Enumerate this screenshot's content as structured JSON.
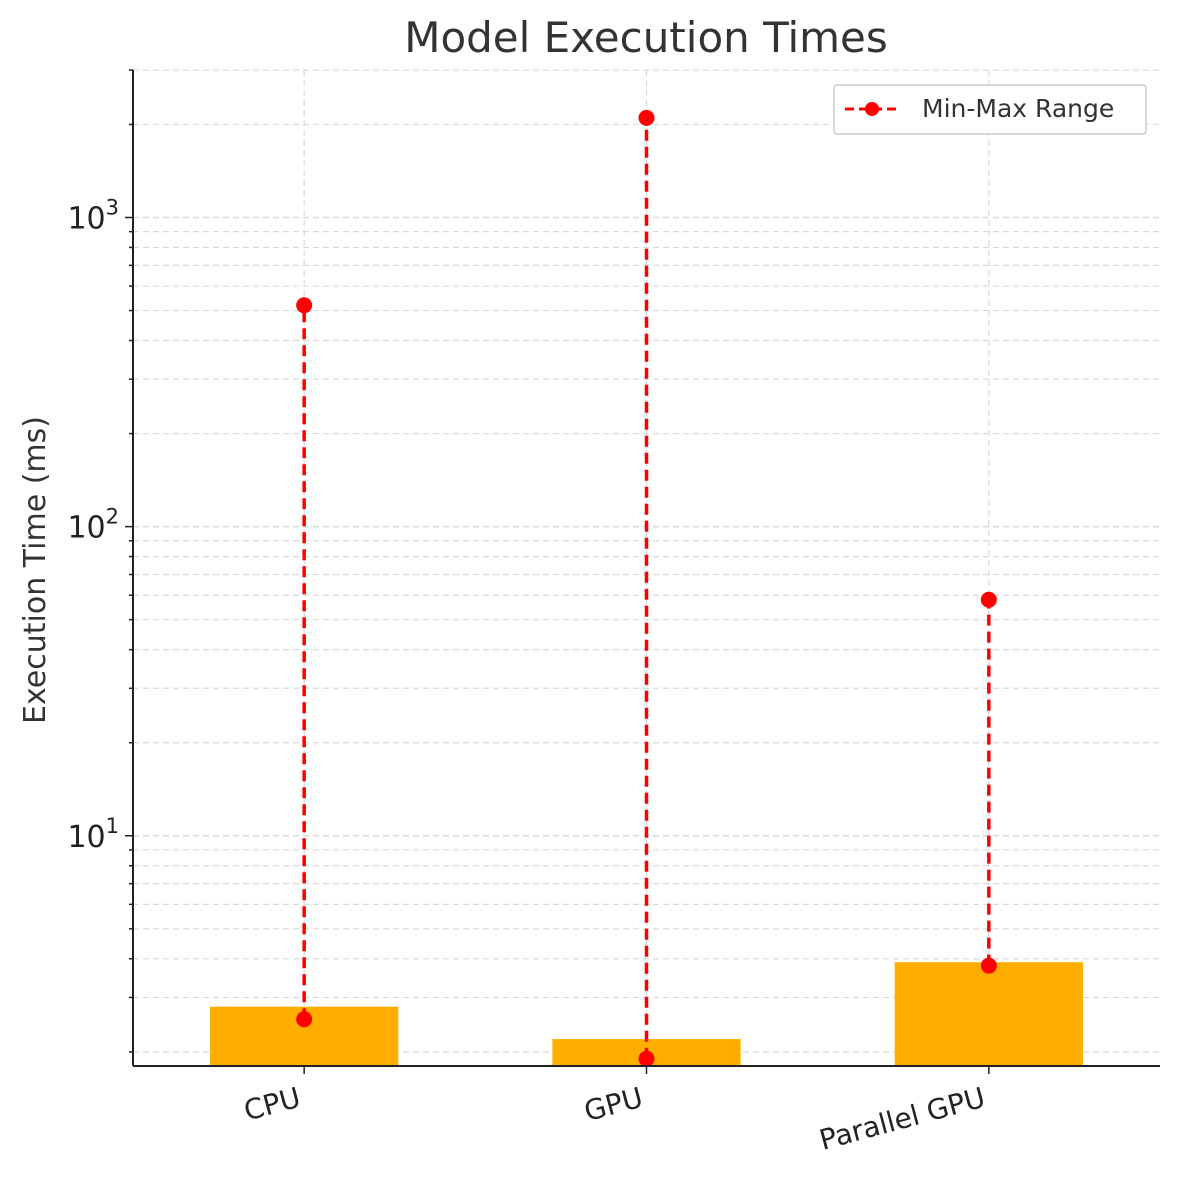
{
  "chart_data": {
    "type": "bar",
    "title": "Model Execution Times",
    "xlabel": "",
    "ylabel": "Execution Time (ms)",
    "yscale": "log",
    "ylim": [
      1.8,
      3000
    ],
    "grid": true,
    "legend_position": "top-right",
    "categories": [
      "CPU",
      "GPU",
      "Parallel GPU"
    ],
    "values": [
      2.8,
      2.2,
      3.9
    ],
    "range_series": {
      "name": "Min-Max Range",
      "min": [
        2.55,
        1.9,
        3.8
      ],
      "max": [
        520,
        2100,
        58
      ]
    },
    "y_ticks": [
      {
        "value": 10,
        "base": "10",
        "exp": "1"
      },
      {
        "value": 100,
        "base": "10",
        "exp": "2"
      },
      {
        "value": 1000,
        "base": "10",
        "exp": "3"
      }
    ],
    "colors": {
      "bar": "#ffae00",
      "range": "#ff0000",
      "grid": "#d9d9d9",
      "axis": "#222222"
    }
  }
}
